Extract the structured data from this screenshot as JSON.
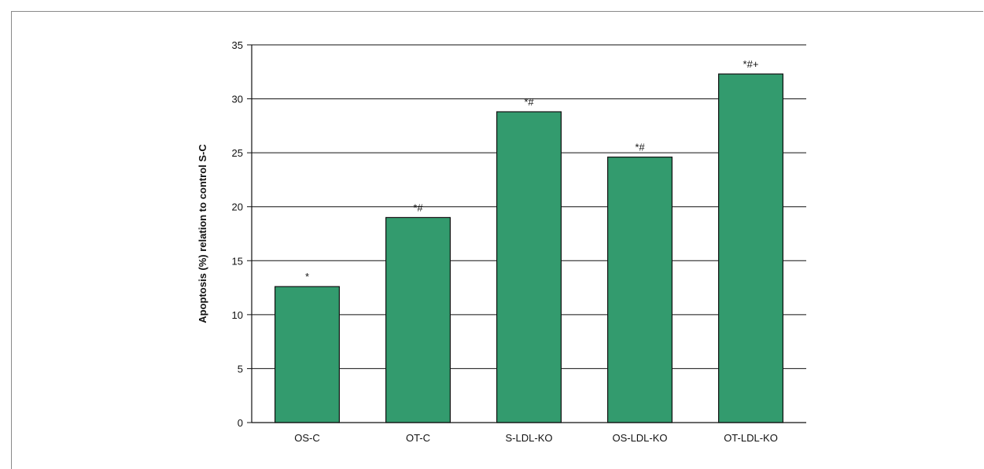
{
  "chart_data": {
    "type": "bar",
    "categories": [
      "OS-C",
      "OT-C",
      "S-LDL-KO",
      "OS-LDL-KO",
      "OT-LDL-KO"
    ],
    "values": [
      12.6,
      19.0,
      28.8,
      24.6,
      32.3
    ],
    "annotations": [
      "*",
      "*#",
      "*#",
      "*#",
      "*#+"
    ],
    "title": "",
    "xlabel": "",
    "ylabel": "Apoptosis (%) relation to control S-C",
    "ylim": [
      0,
      35
    ],
    "yticks": [
      0,
      5,
      10,
      15,
      20,
      25,
      30,
      35
    ],
    "grid": true,
    "legend": "none",
    "colors": {
      "bar": "#339b6e",
      "bar_stroke": "#111111",
      "grid": "#111111"
    }
  }
}
